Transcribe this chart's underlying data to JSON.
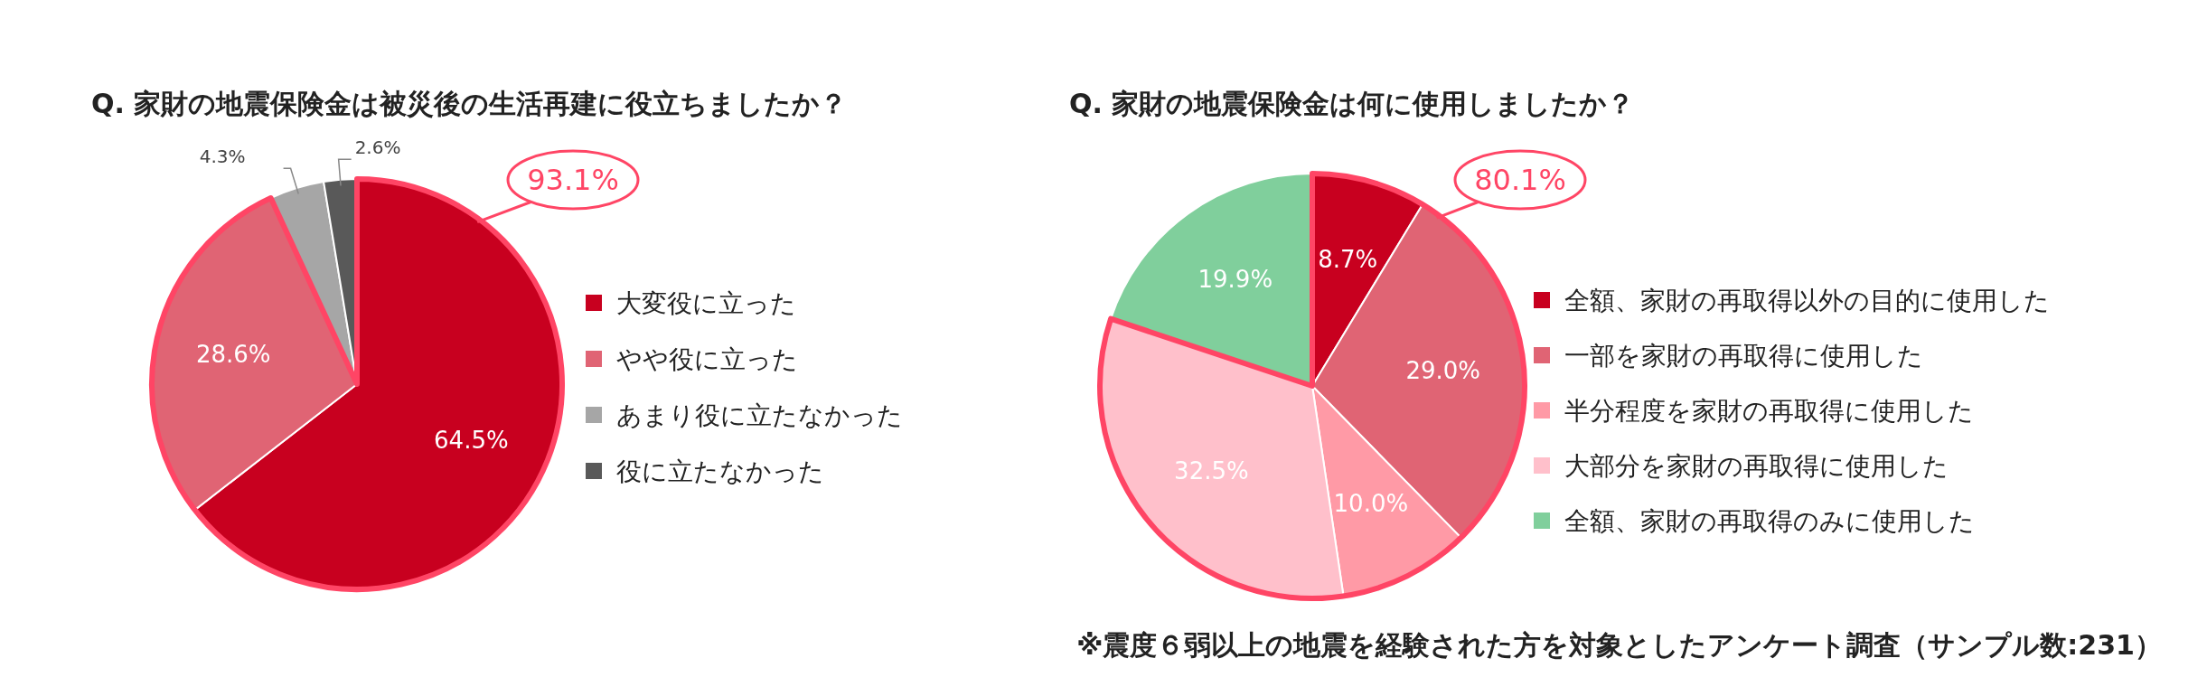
{
  "chart_data": [
    {
      "type": "pie",
      "title": "Q. 家財の地震保険金は被災後の生活再建に役立ちましたか？",
      "categories": [
        "大変役に立った",
        "やや役に立った",
        "あまり役に立たなかった",
        "役に立たなかった"
      ],
      "values": [
        64.5,
        28.6,
        4.3,
        2.6
      ],
      "colors": [
        "#c8001f",
        "#e06474",
        "#a6a6a6",
        "#595959"
      ],
      "value_labels": [
        "64.5%",
        "28.6%",
        "4.3%",
        "2.6%"
      ],
      "legend": "right",
      "annotations": [
        "93.1%"
      ]
    },
    {
      "type": "pie",
      "title": "Q. 家財の地震保険金は何に使用しましたか？",
      "categories": [
        "全額、家財の再取得以外の目的に使用した",
        "一部を家財の再取得に使用した",
        "半分程度を家財の再取得に使用した",
        "大部分を家財の再取得に使用した",
        "全額、家財の再取得のみに使用した"
      ],
      "values": [
        8.7,
        29.0,
        10.0,
        32.5,
        19.9
      ],
      "colors": [
        "#c8001f",
        "#e06474",
        "#ff9aa6",
        "#ffc0cb",
        "#80cf9c"
      ],
      "value_labels": [
        "8.7%",
        "29.0%",
        "10.0%",
        "32.5%",
        "19.9%"
      ],
      "legend": "right",
      "annotations": [
        "80.1%",
        "※震度６弱以上の地震を経験された方を対象としたアンケート調査（サンプル数:231）"
      ]
    }
  ]
}
